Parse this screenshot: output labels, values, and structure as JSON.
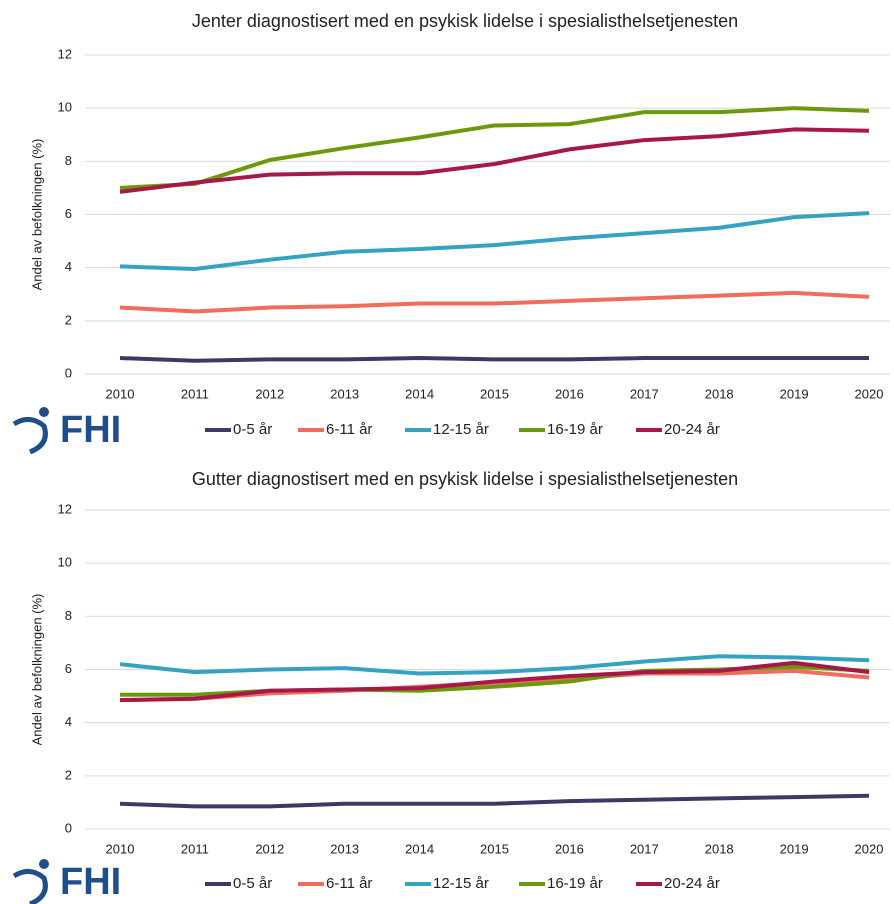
{
  "logo": "FHI",
  "chart_data": [
    {
      "type": "line",
      "title": "Jenter diagnostisert med en psykisk lidelse i spesialisthelsetjenesten",
      "y_label": "Andel av befolkningen (%)",
      "categories": [
        "2010",
        "2011",
        "2012",
        "2013",
        "2014",
        "2015",
        "2016",
        "2017",
        "2018",
        "2019",
        "2020"
      ],
      "ylim": [
        0,
        12
      ],
      "yticks": [
        0,
        2,
        4,
        6,
        8,
        10,
        12
      ],
      "grid": true,
      "legend": "bottom",
      "series": [
        {
          "name": "0-5 år",
          "color": "#3b3a66",
          "values": [
            0.6,
            0.5,
            0.55,
            0.55,
            0.6,
            0.55,
            0.55,
            0.6,
            0.6,
            0.6,
            0.6
          ]
        },
        {
          "name": "6-11 år",
          "color": "#f26b5b",
          "values": [
            2.5,
            2.35,
            2.5,
            2.55,
            2.65,
            2.65,
            2.75,
            2.85,
            2.95,
            3.05,
            2.9
          ]
        },
        {
          "name": "12-15 år",
          "color": "#34a3c2",
          "values": [
            4.05,
            3.95,
            4.3,
            4.6,
            4.7,
            4.85,
            5.1,
            5.3,
            5.5,
            5.9,
            6.05
          ]
        },
        {
          "name": "16-19 år",
          "color": "#6a9a0b",
          "values": [
            7.0,
            7.15,
            8.05,
            8.5,
            8.9,
            9.35,
            9.4,
            9.85,
            9.85,
            10.0,
            9.9
          ]
        },
        {
          "name": "20-24 år",
          "color": "#a8174a",
          "values": [
            6.85,
            7.2,
            7.5,
            7.55,
            7.55,
            7.9,
            8.45,
            8.8,
            8.95,
            9.2,
            9.15
          ]
        }
      ]
    },
    {
      "type": "line",
      "title": "Gutter diagnostisert med en psykisk lidelse i spesialisthelsetjenesten",
      "y_label": "Andel av befolkningen (%)",
      "categories": [
        "2010",
        "2011",
        "2012",
        "2013",
        "2014",
        "2015",
        "2016",
        "2017",
        "2018",
        "2019",
        "2020"
      ],
      "ylim": [
        0,
        12
      ],
      "yticks": [
        0,
        2,
        4,
        6,
        8,
        10,
        12
      ],
      "grid": true,
      "legend": "bottom",
      "series": [
        {
          "name": "0-5 år",
          "color": "#3b3a66",
          "values": [
            0.95,
            0.85,
            0.85,
            0.95,
            0.95,
            0.95,
            1.05,
            1.1,
            1.15,
            1.2,
            1.25
          ]
        },
        {
          "name": "6-11 år",
          "color": "#f26b5b",
          "values": [
            4.85,
            4.9,
            5.1,
            5.2,
            5.35,
            5.5,
            5.65,
            5.85,
            5.85,
            5.95,
            5.7
          ]
        },
        {
          "name": "12-15 år",
          "color": "#34a3c2",
          "values": [
            6.2,
            5.9,
            6.0,
            6.05,
            5.85,
            5.9,
            6.05,
            6.3,
            6.5,
            6.45,
            6.35
          ]
        },
        {
          "name": "16-19 år",
          "color": "#6a9a0b",
          "values": [
            5.05,
            5.05,
            5.2,
            5.25,
            5.2,
            5.35,
            5.55,
            5.95,
            6.0,
            6.1,
            5.95
          ]
        },
        {
          "name": "20-24 år",
          "color": "#a8174a",
          "values": [
            4.85,
            4.9,
            5.2,
            5.25,
            5.3,
            5.55,
            5.75,
            5.9,
            5.95,
            6.25,
            5.9
          ]
        }
      ]
    }
  ]
}
